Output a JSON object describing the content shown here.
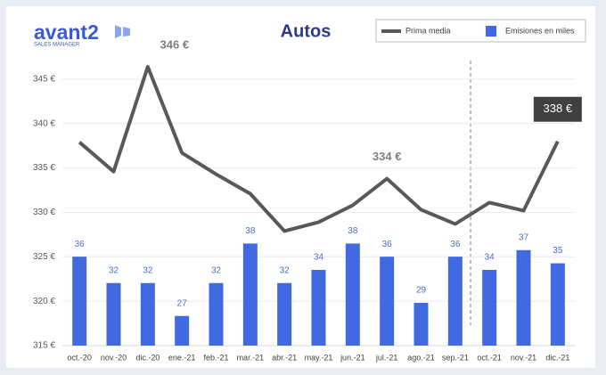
{
  "logo": {
    "name": "avant2",
    "tagline": "SALES MANAGER"
  },
  "chart_data": {
    "type": "combo",
    "title": "Autos",
    "categories": [
      "oct.-20",
      "nov.-20",
      "dic.-20",
      "ene.-21",
      "feb.-21",
      "mar.-21",
      "abr.-21",
      "may.-21",
      "jun.-21",
      "jul.-21",
      "ago.-21",
      "sep.-21",
      "oct.-21",
      "nov.-21",
      "dic.-21"
    ],
    "series": [
      {
        "name": "Prima media",
        "type": "line",
        "color": "#595959",
        "values": [
          337.9,
          334.6,
          346.4,
          336.7,
          334.3,
          332.1,
          327.9,
          328.9,
          330.8,
          333.8,
          330.3,
          328.7,
          331.1,
          330.2,
          338.0
        ],
        "value_labels": [
          null,
          null,
          "346 €",
          null,
          null,
          null,
          null,
          null,
          null,
          "334 €",
          null,
          null,
          null,
          null,
          "338 €"
        ]
      },
      {
        "name": "Emisiones en miles",
        "type": "bar",
        "axis": "y2",
        "color": "#4169e1",
        "values": [
          36,
          32,
          32,
          27,
          32,
          38,
          32,
          34,
          38,
          36,
          29,
          36,
          34,
          37,
          35
        ]
      }
    ],
    "ylim": [
      315,
      348
    ],
    "yticks": [
      {
        "value": 315,
        "label": "315 €"
      },
      {
        "value": 320,
        "label": "320 €"
      },
      {
        "value": 325,
        "label": "325 €"
      },
      {
        "value": 330,
        "label": "330 €"
      },
      {
        "value": 335,
        "label": "335 €"
      },
      {
        "value": 340,
        "label": "340 €"
      },
      {
        "value": 345,
        "label": "345 €"
      }
    ],
    "y2lim": [
      22.5,
      67
    ],
    "grid": true,
    "legend": "top-right"
  }
}
